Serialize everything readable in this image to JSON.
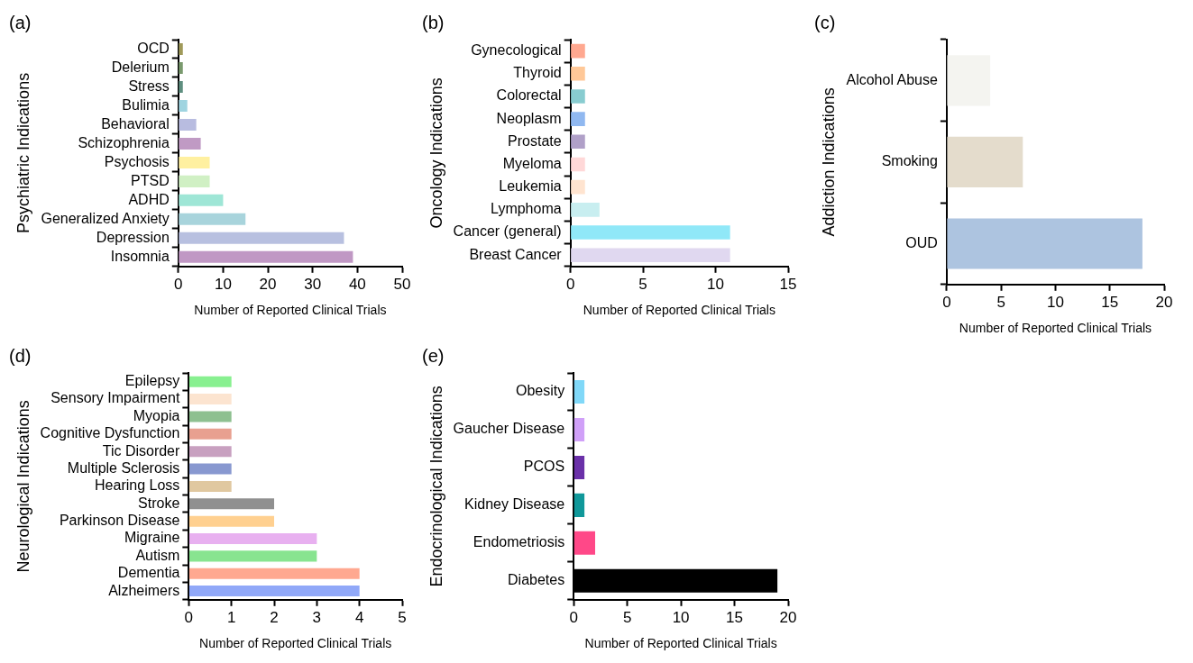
{
  "chart_data": [
    {
      "type": "bar",
      "orientation": "horizontal",
      "annotations": [
        "(a)"
      ],
      "ylabel": "Psychiatric Indications",
      "xlabel": "Number of Reported Clinical Trials",
      "categories": [
        "OCD",
        "Delerium",
        "Stress",
        "Bulimia",
        "Behavioral",
        "Schizophrenia",
        "Psychosis",
        "PTSD",
        "ADHD",
        "Generalized Anxiety",
        "Depression",
        "Insomnia"
      ],
      "values": [
        1,
        1,
        1,
        2,
        4,
        5,
        7,
        7,
        10,
        15,
        37,
        39
      ],
      "colors": [
        "#a09a5a",
        "#7a9a6e",
        "#5f8f80",
        "#9fd4e0",
        "#b8bce0",
        "#c09ac4",
        "#fff0a0",
        "#d0f0c4",
        "#9ee6d6",
        "#a8d4dc",
        "#b8c0e0",
        "#c098c4"
      ],
      "xlim": [
        0,
        50
      ],
      "xticks": [
        0,
        10,
        20,
        30,
        40,
        50
      ],
      "grid": false
    },
    {
      "type": "bar",
      "orientation": "horizontal",
      "annotations": [
        "(b)"
      ],
      "ylabel": "Oncology Indications",
      "xlabel": "Number of Reported Clinical Trials",
      "categories": [
        "Gynecological",
        "Thyroid",
        "Colorectal",
        "Neoplasm",
        "Prostate",
        "Myeloma",
        "Leukemia",
        "Lymphoma",
        "Cancer (general)",
        "Breast Cancer"
      ],
      "values": [
        1,
        1,
        1,
        1,
        1,
        1,
        1,
        2,
        11,
        11
      ],
      "colors": [
        "#ffa890",
        "#ffc898",
        "#88ccd0",
        "#90b8f0",
        "#b0a0c8",
        "#ffd8d8",
        "#ffe4d0",
        "#c8eef0",
        "#90e8f8",
        "#e0d8f0"
      ],
      "xlim": [
        0,
        15
      ],
      "xticks": [
        0,
        5,
        10,
        15
      ],
      "grid": false
    },
    {
      "type": "bar",
      "orientation": "horizontal",
      "annotations": [
        "(c)"
      ],
      "ylabel": "Addiction Indications",
      "xlabel": "Number of Reported Clinical Trials",
      "categories": [
        "Alcohol Abuse",
        "Smoking",
        "OUD"
      ],
      "values": [
        4,
        7,
        18
      ],
      "colors": [
        "#f4f4f0",
        "#e4dccc",
        "#adc4e0"
      ],
      "xlim": [
        0,
        20
      ],
      "xticks": [
        0,
        5,
        10,
        15,
        20
      ],
      "grid": false
    },
    {
      "type": "bar",
      "orientation": "horizontal",
      "annotations": [
        "(d)"
      ],
      "ylabel": "Neurological Indications",
      "xlabel": "Number of Reported Clinical Trials",
      "categories": [
        "Epilepsy",
        "Sensory Impairment",
        "Myopia",
        "Cognitive Dysfunction",
        "Tic Disorder",
        "Multiple Sclerosis",
        "Hearing Loss",
        "Stroke",
        "Parkinson Disease",
        "Migraine",
        "Autism",
        "Dementia",
        "Alzheimers"
      ],
      "values": [
        1,
        1,
        1,
        1,
        1,
        1,
        1,
        2,
        2,
        3,
        3,
        4,
        4
      ],
      "colors": [
        "#88f090",
        "#fce4d0",
        "#8ec090",
        "#e8a090",
        "#c8a0c0",
        "#8898d0",
        "#e0c8a0",
        "#909090",
        "#ffd090",
        "#e8b0f0",
        "#88e490",
        "#ffa890",
        "#90a8f8"
      ],
      "xlim": [
        0,
        5
      ],
      "xticks": [
        0,
        1,
        2,
        3,
        4,
        5
      ],
      "grid": false
    },
    {
      "type": "bar",
      "orientation": "horizontal",
      "annotations": [
        "(e)"
      ],
      "ylabel": "Endocrinological Indications",
      "xlabel": "Number of Reported Clinical Trials",
      "categories": [
        "Obesity",
        "Gaucher Disease",
        "PCOS",
        "Kidney Disease",
        "Endometriosis",
        "Diabetes"
      ],
      "values": [
        1,
        1,
        1,
        1,
        2,
        19
      ],
      "colors": [
        "#80d8f8",
        "#d0a0f8",
        "#6a30a8",
        "#10989a",
        "#ff4888",
        "#000000"
      ],
      "xlim": [
        0,
        20
      ],
      "xticks": [
        0,
        5,
        10,
        15,
        20
      ],
      "grid": false
    }
  ]
}
